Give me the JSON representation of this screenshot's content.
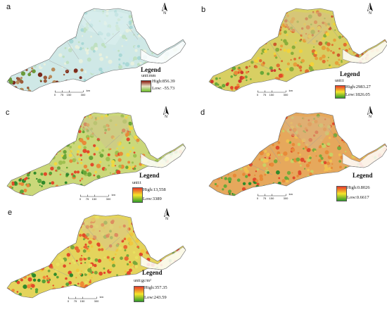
{
  "panels": [
    {
      "letter": "a",
      "north": "N",
      "legend": {
        "title": "Legend",
        "unit": "unit:mm",
        "high": "High:856.39",
        "low": "Low: -55.73",
        "ramp": [
          "#8a1a0e",
          "#e8e2c6",
          "#6fbf2a"
        ]
      },
      "scale": {
        "ticks": [
          "0",
          "75",
          "150",
          "300"
        ],
        "unit": "km"
      }
    },
    {
      "letter": "b",
      "north": "N",
      "legend": {
        "title": "Legend",
        "unit": "unit:t",
        "high": "High:2983.27",
        "low": "Low:1826.05",
        "ramp": [
          "#e8382a",
          "#f5e62c",
          "#2f9a2a"
        ]
      },
      "scale": {
        "ticks": [
          "0",
          "75",
          "150",
          "300"
        ],
        "unit": "km"
      }
    },
    {
      "letter": "c",
      "north": "N",
      "legend": {
        "title": "Legend",
        "unit": "unit:t",
        "high": "High:13,558",
        "low": "Low:3389",
        "ramp": [
          "#e8382a",
          "#f5e62c",
          "#2f9a2a"
        ]
      },
      "scale": {
        "ticks": [
          "0",
          "75",
          "150",
          "300"
        ],
        "unit": "km"
      }
    },
    {
      "letter": "d",
      "north": "N",
      "legend": {
        "title": "Legend",
        "unit": "",
        "high": "High:0.8026",
        "low": "Low:0.6617",
        "ramp": [
          "#e8382a",
          "#f5e62c",
          "#2f9a2a"
        ]
      },
      "scale": {
        "ticks": [
          "0",
          "75",
          "150",
          "300"
        ],
        "unit": "km"
      }
    },
    {
      "letter": "e",
      "north": "N",
      "legend": {
        "title": "Legend",
        "unit": "unit:gc/m²",
        "high": "High:357.35",
        "low": "Low:243.59",
        "ramp": [
          "#e8382a",
          "#f5e62c",
          "#2f9a2a"
        ]
      },
      "scale": {
        "ticks": [
          "0",
          "75",
          "150",
          "300"
        ],
        "unit": "km"
      }
    }
  ]
}
